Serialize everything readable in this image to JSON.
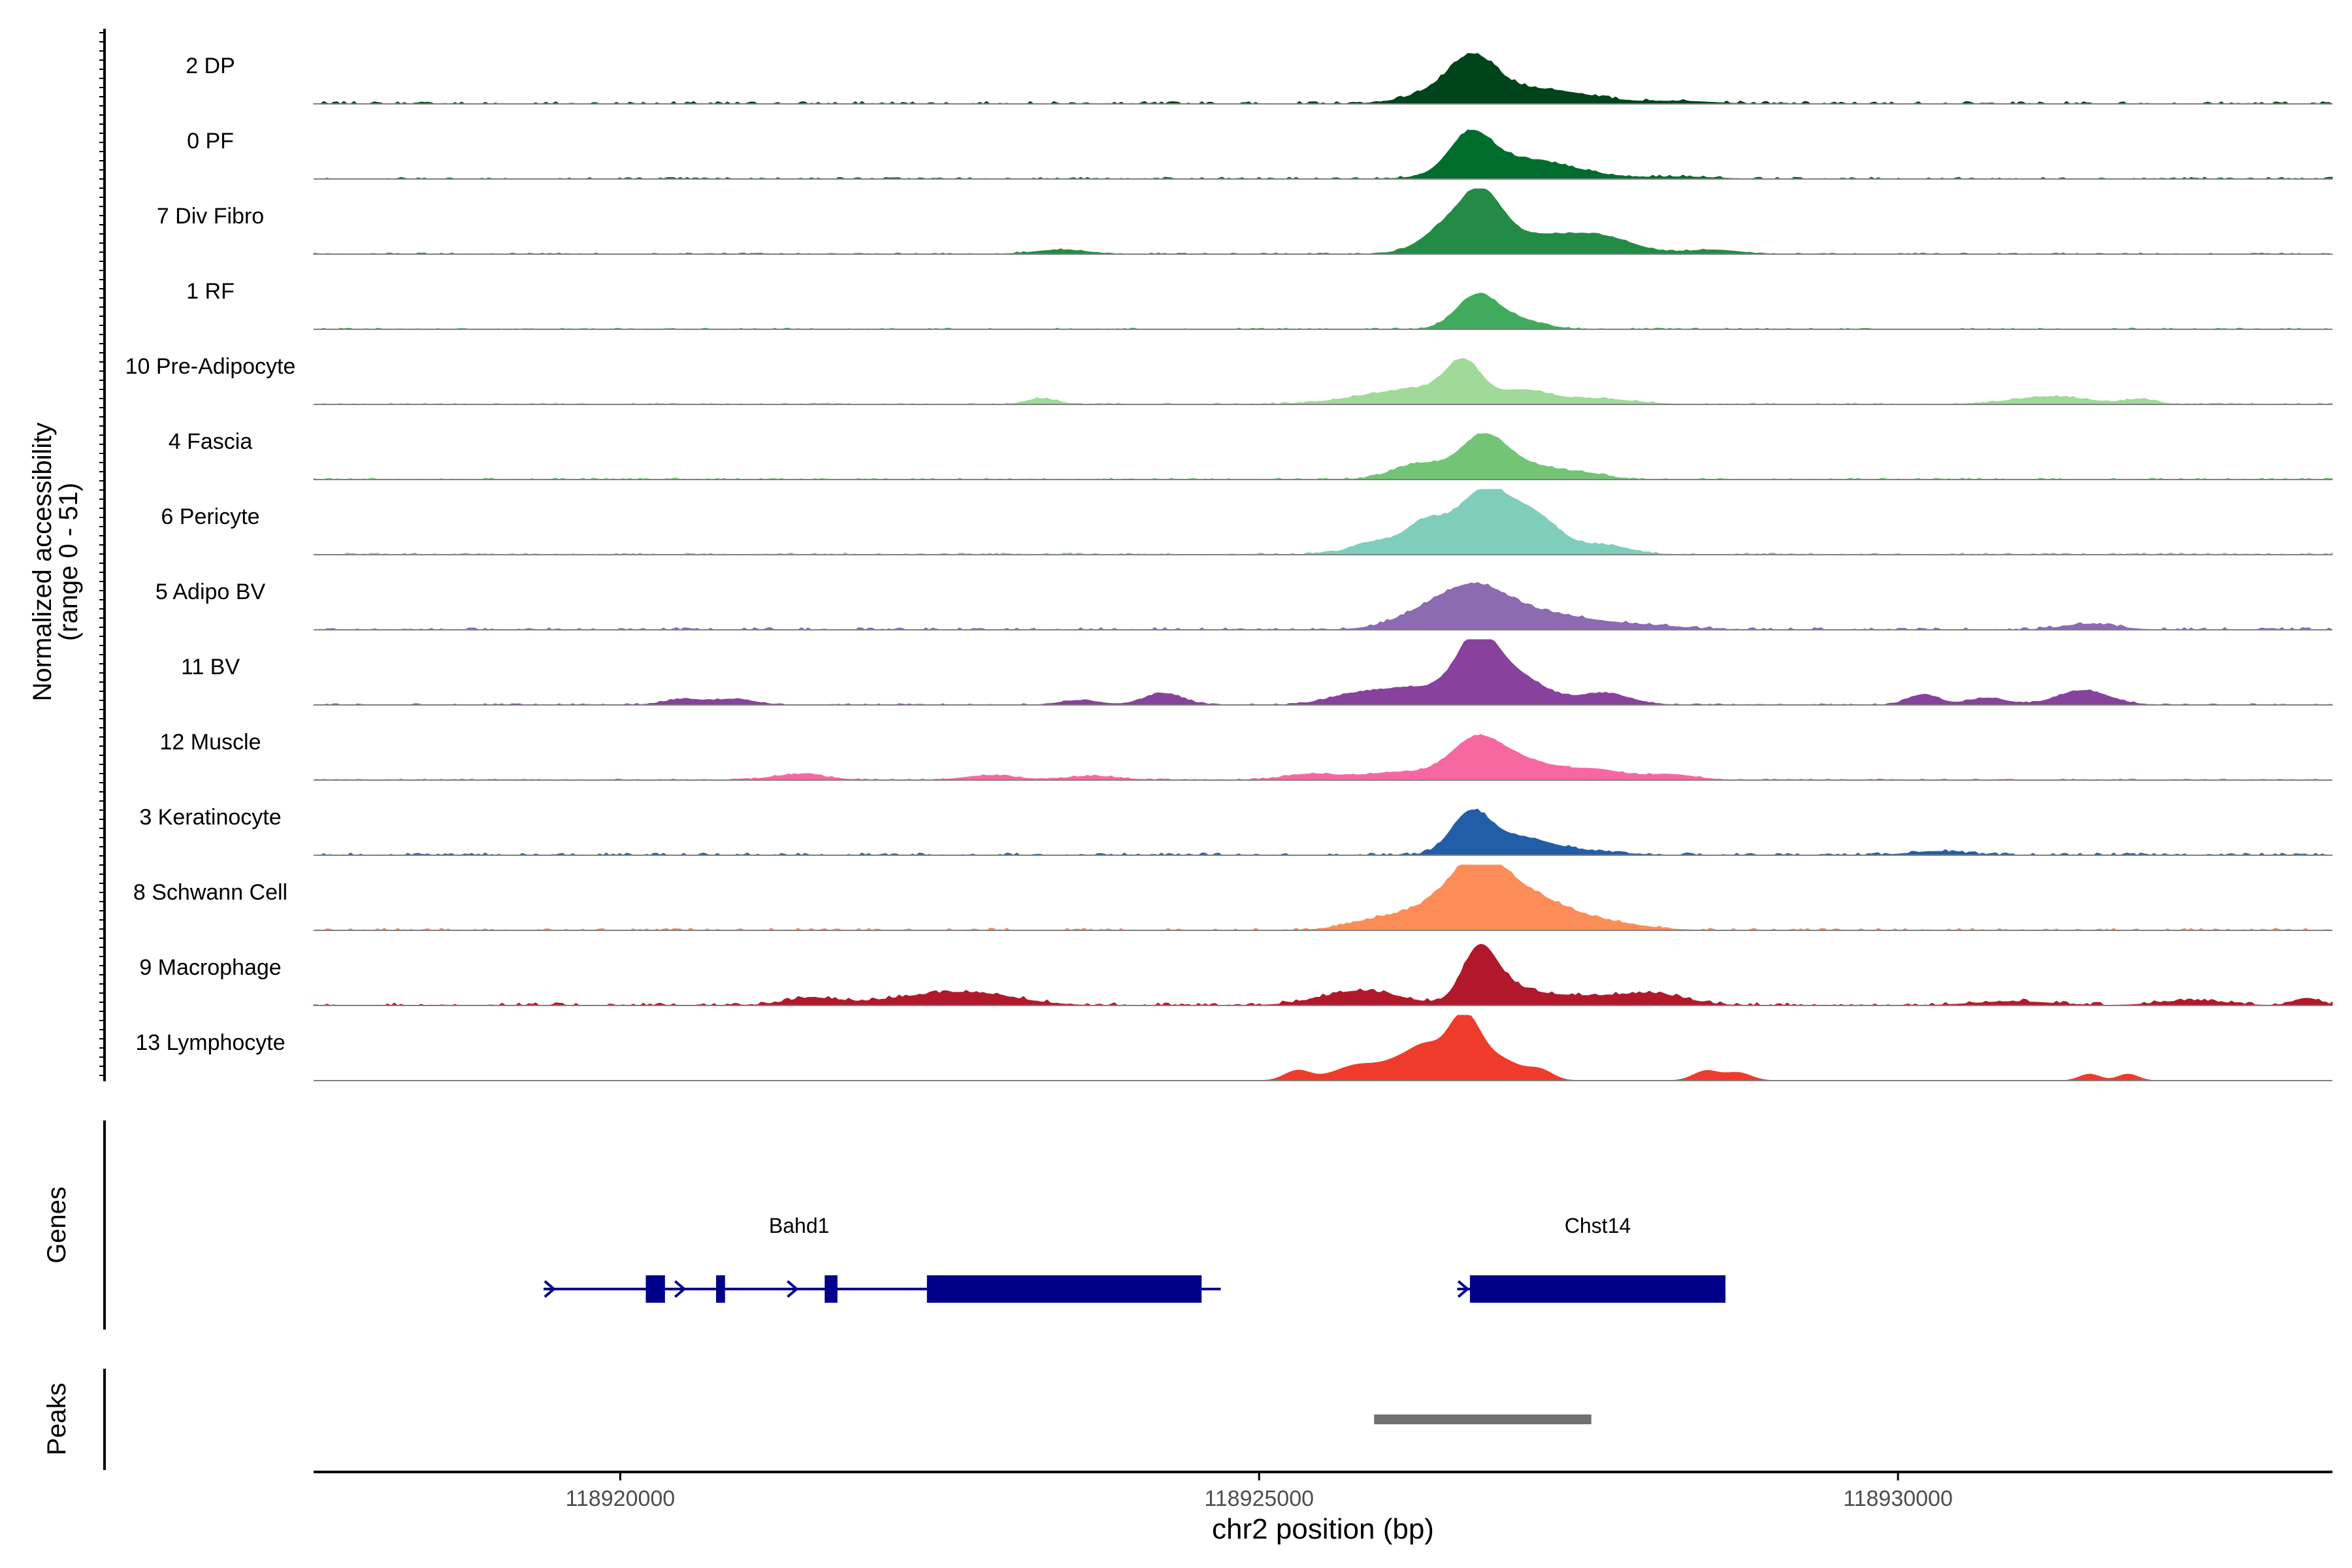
{
  "chart_data": {
    "type": "area",
    "title": "",
    "chromosome": "chr2",
    "xlabel": "chr2 position (bp)",
    "xlim": [
      118917600,
      118933400
    ],
    "x_ticks": [
      {
        "value": 118920000,
        "label": "118920000"
      },
      {
        "value": 118925000,
        "label": "118925000"
      },
      {
        "value": 118930000,
        "label": "118930000"
      }
    ],
    "coverage": {
      "ylabel": "Normalized accessibility",
      "ylabel_range": "(range 0 - 51)",
      "ylim": [
        0,
        51
      ],
      "tracks": [
        {
          "name": "2 DP",
          "color": "#00441b",
          "peak": 25,
          "bg": 2.0,
          "bumps": [
            [
              118926680,
              170,
              1.0
            ],
            [
              118927000,
              400,
              0.45
            ],
            [
              118926450,
              250,
              0.35
            ],
            [
              118927500,
              300,
              0.12
            ],
            [
              118928300,
              250,
              0.08
            ]
          ]
        },
        {
          "name": "0 PF",
          "color": "#006d2c",
          "peak": 28,
          "bg": 1.5,
          "bumps": [
            [
              118926650,
              160,
              1.0
            ],
            [
              118926950,
              350,
              0.5
            ],
            [
              118927400,
              300,
              0.15
            ],
            [
              118928300,
              250,
              0.06
            ]
          ]
        },
        {
          "name": "7 Div Fibro",
          "color": "#238b45",
          "peak": 33,
          "bg": 1.0,
          "bumps": [
            [
              118926750,
              150,
              1.0
            ],
            [
              118926500,
              200,
              0.6
            ],
            [
              118927100,
              400,
              0.45
            ],
            [
              118927700,
              250,
              0.3
            ],
            [
              118928550,
              200,
              0.1
            ],
            [
              118923450,
              200,
              0.1
            ]
          ]
        },
        {
          "name": "1 RF",
          "color": "#41ab5d",
          "peak": 25,
          "bg": 1.0,
          "bumps": [
            [
              118926700,
              160,
              1.0
            ],
            [
              118927000,
              200,
              0.3
            ]
          ]
        },
        {
          "name": "10 Pre-Adipocyte",
          "color": "#a1d99b",
          "peak": 30,
          "bg": 1.2,
          "bumps": [
            [
              118926600,
              140,
              1.0
            ],
            [
              118926300,
              250,
              0.3
            ],
            [
              118927050,
              200,
              0.35
            ],
            [
              118925900,
              300,
              0.2
            ],
            [
              118927600,
              300,
              0.15
            ],
            [
              118931200,
              300,
              0.2
            ],
            [
              118923300,
              120,
              0.15
            ],
            [
              118931900,
              120,
              0.12
            ]
          ]
        },
        {
          "name": "4 Fascia",
          "color": "#74c476",
          "peak": 30,
          "bg": 1.2,
          "bumps": [
            [
              118926750,
              180,
              1.0
            ],
            [
              118926250,
              200,
              0.4
            ],
            [
              118927100,
              300,
              0.35
            ],
            [
              118927600,
              150,
              0.08
            ]
          ]
        },
        {
          "name": "6 Pericyte",
          "color": "#7fcdbb",
          "peak": 48,
          "bg": 1.5,
          "bumps": [
            [
              118926750,
              200,
              1.0
            ],
            [
              118926300,
              160,
              0.5
            ],
            [
              118927150,
              200,
              0.6
            ],
            [
              118925900,
              180,
              0.2
            ],
            [
              118927700,
              200,
              0.15
            ]
          ]
        },
        {
          "name": "5 Adipo BV",
          "color": "#8c6bb1",
          "peak": 30,
          "bg": 1.8,
          "bumps": [
            [
              118926700,
              250,
              1.0
            ],
            [
              118926300,
              250,
              0.4
            ],
            [
              118927200,
              300,
              0.35
            ],
            [
              118927800,
              400,
              0.15
            ],
            [
              118931500,
              200,
              0.15
            ]
          ]
        },
        {
          "name": "11 BV",
          "color": "#88419d",
          "peak": 45,
          "bg": 1.0,
          "bumps": [
            [
              118926700,
              160,
              1.0
            ],
            [
              118927000,
              230,
              0.5
            ],
            [
              118926200,
              300,
              0.3
            ],
            [
              118927700,
              200,
              0.2
            ],
            [
              118925700,
              200,
              0.12
            ],
            [
              118930200,
              120,
              0.18
            ],
            [
              118930700,
              150,
              0.12
            ],
            [
              118931450,
              200,
              0.25
            ],
            [
              118924250,
              150,
              0.2
            ],
            [
              118920500,
              150,
              0.1
            ],
            [
              118920900,
              150,
              0.1
            ],
            [
              118923600,
              150,
              0.08
            ]
          ]
        },
        {
          "name": "12 Muscle",
          "color": "#f768a1",
          "peak": 30,
          "bg": 1.0,
          "bumps": [
            [
              118926700,
              200,
              1.0
            ],
            [
              118927100,
              250,
              0.45
            ],
            [
              118927650,
              200,
              0.25
            ],
            [
              118926100,
              300,
              0.2
            ],
            [
              118925400,
              200,
              0.15
            ],
            [
              118928200,
              200,
              0.15
            ],
            [
              118921400,
              200,
              0.15
            ],
            [
              118922900,
              200,
              0.12
            ],
            [
              118923700,
              200,
              0.1
            ]
          ]
        },
        {
          "name": "3 Keratinocyte",
          "color": "#225ea8",
          "peak": 30,
          "bg": 1.8,
          "bumps": [
            [
              118926650,
              150,
              1.0
            ],
            [
              118927000,
              250,
              0.45
            ],
            [
              118927500,
              300,
              0.1
            ],
            [
              118930300,
              200,
              0.1
            ]
          ]
        },
        {
          "name": "8 Schwann Cell",
          "color": "#fc8d59",
          "peak": 45,
          "bg": 1.8,
          "bumps": [
            [
              118926700,
              220,
              1.0
            ],
            [
              118927100,
              300,
              0.55
            ],
            [
              118926250,
              280,
              0.3
            ],
            [
              118927700,
              300,
              0.12
            ],
            [
              118925800,
              200,
              0.08
            ]
          ]
        },
        {
          "name": "9 Macrophage",
          "color": "#b2182b",
          "peak": 38,
          "bg": 2.2,
          "bumps": [
            [
              118926720,
              130,
              1.0
            ],
            [
              118926900,
              200,
              0.3
            ],
            [
              118925800,
              300,
              0.3
            ],
            [
              118927400,
              400,
              0.2
            ],
            [
              118922750,
              350,
              0.25
            ],
            [
              118928100,
              250,
              0.2
            ],
            [
              118921500,
              200,
              0.15
            ],
            [
              118922200,
              300,
              0.1
            ],
            [
              118933200,
              100,
              0.15
            ],
            [
              118932300,
              250,
              0.1
            ],
            [
              118930900,
              300,
              0.08
            ]
          ]
        },
        {
          "name": "13 Lymphocyte",
          "color": "#ef3b2c",
          "peak": 51,
          "bg": 0.0,
          "bumps": [
            [
              118926600,
              130,
              1.0
            ],
            [
              118926300,
              120,
              0.45
            ],
            [
              118926900,
              150,
              0.3
            ],
            [
              118925800,
              200,
              0.25
            ],
            [
              118925300,
              100,
              0.15
            ],
            [
              118926100,
              120,
              0.2
            ],
            [
              118928500,
              100,
              0.15
            ],
            [
              118928750,
              100,
              0.12
            ],
            [
              118931500,
              80,
              0.1
            ],
            [
              118931800,
              80,
              0.1
            ],
            [
              118927200,
              100,
              0.15
            ]
          ]
        }
      ]
    },
    "genes": {
      "label": "Genes",
      "items": [
        {
          "name": "Bahd1",
          "strand": "+",
          "start": 118919400,
          "end": 118924700,
          "exons": [
            [
              118920200,
              118920350
            ],
            [
              118920750,
              118920820
            ],
            [
              118921600,
              118921700
            ],
            [
              118922400,
              118924550
            ]
          ],
          "arrows": [
            118919450,
            118920470,
            118921350
          ]
        },
        {
          "name": "Chst14",
          "strand": "+",
          "start": 118926550,
          "end": 118928650,
          "exons": [
            [
              118926650,
              118928650
            ]
          ],
          "arrows": [
            118926600
          ]
        }
      ]
    },
    "peaks": {
      "label": "Peaks",
      "regions": [
        [
          118925900,
          118927600
        ]
      ]
    }
  }
}
